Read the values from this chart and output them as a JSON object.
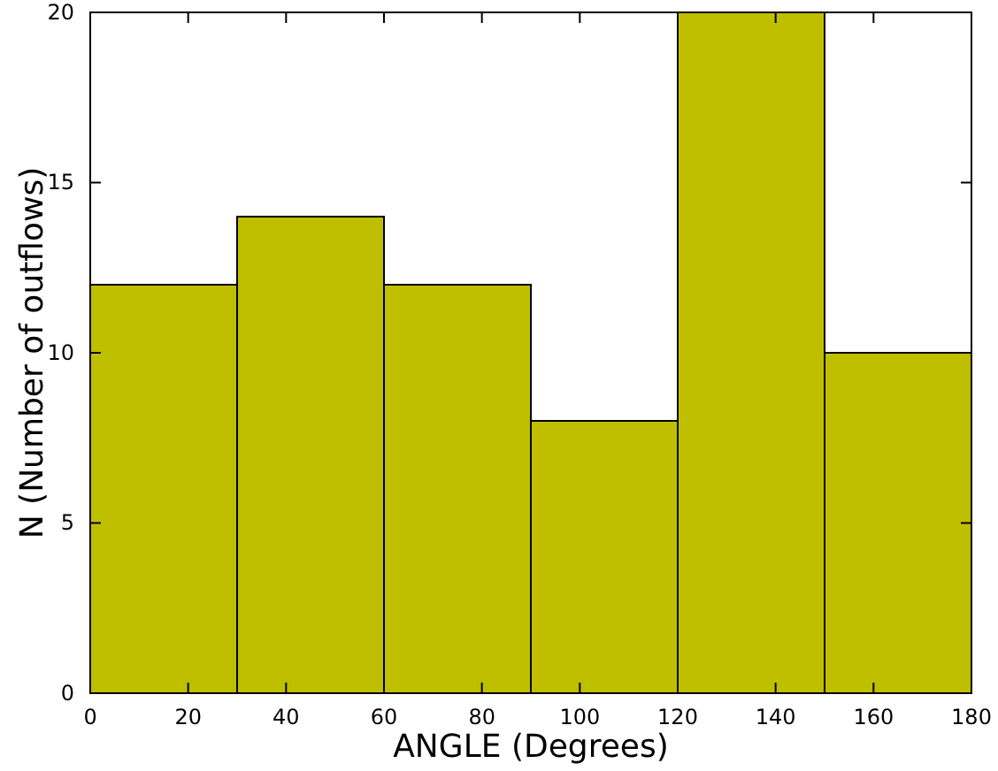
{
  "chart_data": {
    "type": "histogram",
    "xlabel": "ANGLE (Degrees)",
    "ylabel": "N (Number of outflows)",
    "bins": [
      0,
      30,
      60,
      90,
      120,
      150,
      180
    ],
    "values": [
      12,
      14,
      12,
      8,
      20,
      10
    ],
    "color": "#bfbf00",
    "xlim": [
      0,
      180
    ],
    "xticks": [
      0,
      20,
      40,
      60,
      80,
      100,
      120,
      140,
      160,
      180
    ],
    "ylim": [
      0,
      20
    ],
    "yticks": [
      0,
      5,
      10,
      15,
      20
    ],
    "grid": false
  }
}
